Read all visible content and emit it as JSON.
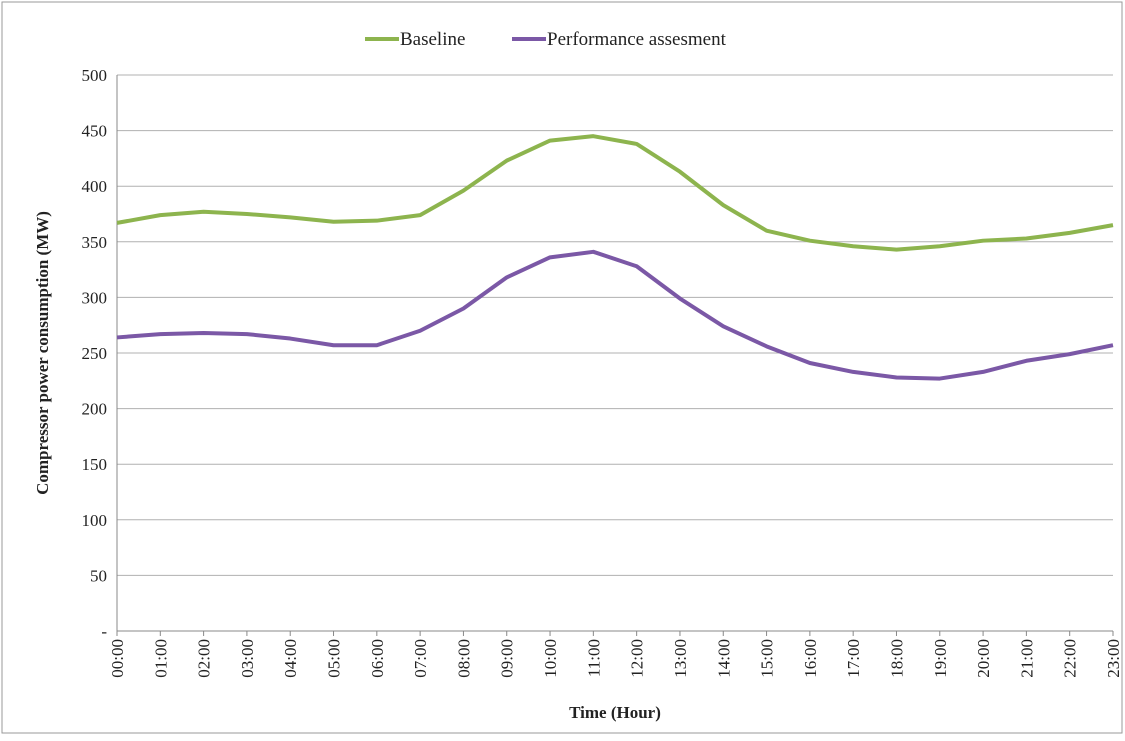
{
  "chart_data": {
    "type": "line",
    "x_label": "Time (Hour)",
    "y_label": "Compressor power consumption (MW)",
    "categories": [
      "00:00",
      "01:00",
      "02:00",
      "03:00",
      "04:00",
      "05:00",
      "06:00",
      "07:00",
      "08:00",
      "09:00",
      "10:00",
      "11:00",
      "12:00",
      "13:00",
      "14:00",
      "15:00",
      "16:00",
      "17:00",
      "18:00",
      "19:00",
      "20:00",
      "21:00",
      "22:00",
      "23:00"
    ],
    "series": [
      {
        "name": "Baseline",
        "color": "#8db44e",
        "values": [
          367,
          374,
          377,
          375,
          372,
          368,
          369,
          374,
          396,
          423,
          441,
          445,
          438,
          413,
          383,
          360,
          351,
          346,
          343,
          346,
          351,
          353,
          358,
          365
        ]
      },
      {
        "name": "Performance assesment",
        "color": "#7b58a6",
        "values": [
          264,
          267,
          268,
          267,
          263,
          257,
          257,
          270,
          290,
          318,
          336,
          341,
          328,
          299,
          274,
          256,
          241,
          233,
          228,
          227,
          233,
          243,
          249,
          257
        ]
      }
    ],
    "ylim": [
      0,
      500
    ],
    "yticks": [
      {
        "value": 0,
        "label": "-"
      },
      50,
      100,
      150,
      200,
      250,
      300,
      350,
      400,
      450,
      500
    ],
    "grid": true,
    "legend": "top"
  }
}
